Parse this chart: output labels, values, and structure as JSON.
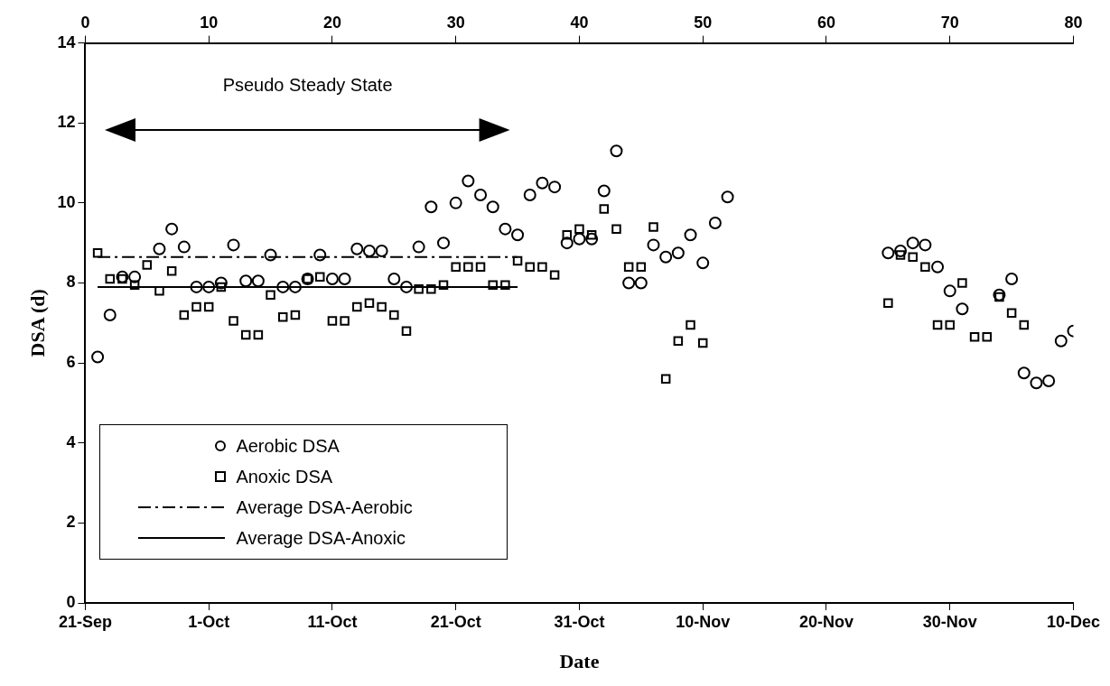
{
  "chart_data": {
    "type": "scatter",
    "xlabel": "Date",
    "ylabel": "DSA (d)",
    "annotations": [
      "Pseudo Steady State"
    ],
    "xlim": [
      "--09-21",
      "--12-10"
    ],
    "xticks": [
      {
        "value": "--09-21",
        "label": "21-Sep"
      },
      {
        "value": "--10-01",
        "label": "1-Oct"
      },
      {
        "value": "--10-11",
        "label": "11-Oct"
      },
      {
        "value": "--10-21",
        "label": "21-Oct"
      },
      {
        "value": "--10-31",
        "label": "31-Oct"
      },
      {
        "value": "--11-10",
        "label": "10-Nov"
      },
      {
        "value": "--11-20",
        "label": "20-Nov"
      },
      {
        "value": "--11-30",
        "label": "30-Nov"
      },
      {
        "value": "--12-10",
        "label": "10-Dec"
      }
    ],
    "x2lim": [
      0,
      80
    ],
    "x2ticks": [
      0,
      10,
      20,
      30,
      40,
      50,
      60,
      70,
      80
    ],
    "ylim": [
      0,
      14
    ],
    "yticks": [
      0,
      2,
      4,
      6,
      8,
      10,
      12,
      14
    ],
    "grid": false,
    "legend": "bottom left",
    "series": [
      {
        "name": "Aerobic DSA",
        "marker": "circle",
        "color": "#000000",
        "x": [
          "--09-22",
          "--09-23",
          "--09-24",
          "--09-25",
          "--09-27",
          "--09-28",
          "--09-29",
          "--09-30",
          "--10-01",
          "--10-02",
          "--10-03",
          "--10-04",
          "--10-05",
          "--10-06",
          "--10-07",
          "--10-08",
          "--10-09",
          "--10-10",
          "--10-11",
          "--10-12",
          "--10-13",
          "--10-14",
          "--10-15",
          "--10-16",
          "--10-17",
          "--10-18",
          "--10-19",
          "--10-20",
          "--10-21",
          "--10-22",
          "--10-23",
          "--10-24",
          "--10-25",
          "--10-26",
          "--10-27",
          "--10-28",
          "--10-29",
          "--10-30",
          "--10-31",
          "--11-01",
          "--11-02",
          "--11-03",
          "--11-04",
          "--11-05",
          "--11-06",
          "--11-07",
          "--11-08",
          "--11-09",
          "--11-10",
          "--11-11",
          "--11-12",
          "--11-25",
          "--11-26",
          "--11-27",
          "--11-28",
          "--11-29",
          "--11-30",
          "--12-01",
          "--12-04",
          "--12-05",
          "--12-06",
          "--12-07",
          "--12-08",
          "--12-09",
          "--12-10"
        ],
        "values": [
          6.15,
          7.2,
          8.15,
          8.15,
          8.85,
          9.35,
          8.9,
          7.9,
          7.9,
          8,
          8.95,
          8.05,
          8.05,
          8.7,
          7.9,
          7.9,
          8.1,
          8.7,
          8.1,
          8.1,
          8.85,
          8.8,
          8.8,
          8.1,
          7.9,
          8.9,
          9.9,
          9,
          10,
          10.55,
          10.2,
          9.9,
          9.35,
          9.2,
          10.2,
          10.5,
          10.4,
          9,
          9.1,
          9.1,
          10.3,
          11.3,
          8,
          8,
          8.95,
          8.65,
          8.75,
          9.2,
          8.5,
          9.5,
          10.15,
          8.75,
          8.8,
          9,
          8.95,
          8.4,
          7.8,
          7.35,
          7.7,
          8.1,
          5.75,
          5.5,
          5.55,
          6.55,
          6.8
        ]
      },
      {
        "name": "Anoxic DSA",
        "marker": "square",
        "color": "#000000",
        "x": [
          "--09-22",
          "--09-23",
          "--09-24",
          "--09-25",
          "--09-26",
          "--09-27",
          "--09-28",
          "--09-29",
          "--09-30",
          "--10-01",
          "--10-02",
          "--10-03",
          "--10-04",
          "--10-05",
          "--10-06",
          "--10-07",
          "--10-08",
          "--10-09",
          "--10-10",
          "--10-11",
          "--10-12",
          "--10-13",
          "--10-14",
          "--10-15",
          "--10-16",
          "--10-17",
          "--10-18",
          "--10-19",
          "--10-20",
          "--10-21",
          "--10-22",
          "--10-23",
          "--10-24",
          "--10-25",
          "--10-26",
          "--10-27",
          "--10-28",
          "--10-29",
          "--10-30",
          "--10-31",
          "--11-01",
          "--11-02",
          "--11-03",
          "--11-04",
          "--11-05",
          "--11-06",
          "--11-07",
          "--11-08",
          "--11-09",
          "--11-10",
          "--11-25",
          "--11-26",
          "--11-27",
          "--11-28",
          "--11-29",
          "--11-30",
          "--12-01",
          "--12-02",
          "--12-03",
          "--12-04",
          "--12-05",
          "--12-06"
        ],
        "values": [
          8.75,
          8.1,
          8.1,
          7.95,
          8.45,
          7.8,
          8.3,
          7.2,
          7.4,
          7.4,
          7.9,
          7.05,
          6.7,
          6.7,
          7.7,
          7.15,
          7.2,
          8.1,
          8.15,
          7.05,
          7.05,
          7.4,
          7.5,
          7.4,
          7.2,
          6.8,
          7.85,
          7.85,
          7.95,
          8.4,
          8.4,
          8.4,
          7.95,
          7.95,
          8.55,
          8.4,
          8.4,
          8.2,
          9.2,
          9.35,
          9.2,
          9.85,
          9.35,
          8.4,
          8.4,
          9.4,
          5.6,
          6.55,
          6.95,
          6.5,
          7.5,
          8.7,
          8.65,
          8.4,
          6.95,
          6.95,
          8,
          6.65,
          6.65,
          7.65,
          7.25,
          6.95
        ]
      },
      {
        "name": "Average DSA-Aerobic",
        "type": "line",
        "marker": "none",
        "line_style": "dashed",
        "color": "#000000",
        "x": [
          "--09-22",
          "--10-26"
        ],
        "values": [
          8.65,
          8.65
        ]
      },
      {
        "name": "Average DSA-Anoxic",
        "type": "line",
        "marker": "none",
        "line_style": "solid",
        "color": "#000000",
        "x": [
          "--09-22",
          "--10-26"
        ],
        "values": [
          7.9,
          7.9
        ]
      }
    ]
  }
}
